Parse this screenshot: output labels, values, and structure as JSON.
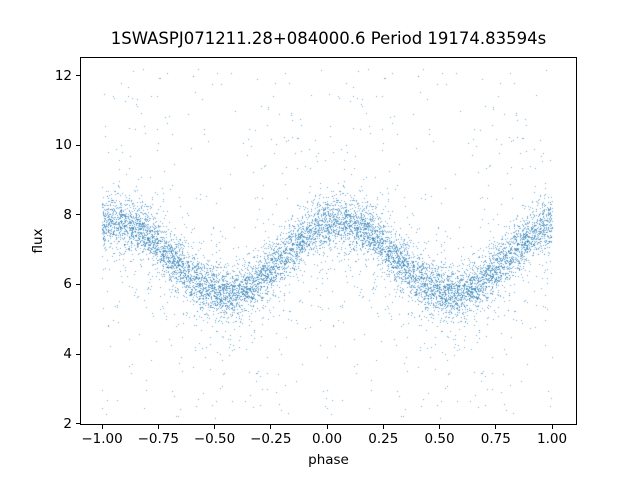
{
  "chart_data": {
    "type": "scatter",
    "title": "1SWASPJ071211.28+084000.6 Period 19174.83594s",
    "xlabel": "phase",
    "ylabel": "flux",
    "xlim": [
      -1.098,
      1.111
    ],
    "ylim": [
      1.96,
      12.54
    ],
    "grid": false,
    "legend": "none",
    "x_ticks": {
      "values": [
        -1.0,
        -0.75,
        -0.5,
        -0.25,
        0.0,
        0.25,
        0.5,
        0.75,
        1.0
      ],
      "labels": [
        "−1.00",
        "−0.75",
        "−0.50",
        "−0.25",
        "0.00",
        "0.25",
        "0.50",
        "0.75",
        "1.00"
      ]
    },
    "y_ticks": {
      "values": [
        2,
        4,
        6,
        8,
        10,
        12
      ],
      "labels": [
        "2",
        "4",
        "6",
        "8",
        "10",
        "12"
      ]
    },
    "curve": {
      "comment_visible_in_pixels": "mean flux of the dense point band vs phase; data is phase-folded and plotted twice (at phase and phase-1); maxima ~7.8 near phase 0.05 and -0.95; eclipse minima ~5.7 near phase -0.45 and 0.55",
      "phase": [
        -1.0,
        -0.95,
        -0.9,
        -0.85,
        -0.8,
        -0.75,
        -0.7,
        -0.65,
        -0.6,
        -0.55,
        -0.5,
        -0.45,
        -0.4,
        -0.35,
        -0.3,
        -0.25,
        -0.2,
        -0.15,
        -0.1,
        -0.05,
        0.0,
        0.05,
        0.1,
        0.15,
        0.2,
        0.25,
        0.3,
        0.35,
        0.4,
        0.45,
        0.5,
        0.55,
        0.6,
        0.65,
        0.7,
        0.75,
        0.8,
        0.85,
        0.9,
        0.95,
        1.0
      ],
      "flux": [
        7.77,
        7.83,
        7.79,
        7.65,
        7.42,
        7.14,
        6.81,
        6.49,
        6.19,
        5.95,
        5.79,
        5.73,
        5.77,
        5.91,
        6.14,
        6.42,
        6.75,
        7.07,
        7.37,
        7.61,
        7.77,
        7.83,
        7.79,
        7.65,
        7.42,
        7.14,
        6.81,
        6.49,
        6.19,
        5.95,
        5.79,
        5.73,
        5.77,
        5.91,
        6.14,
        6.42,
        6.75,
        7.07,
        7.37,
        7.61,
        7.77
      ]
    },
    "scatter_model": {
      "n_points": 4800,
      "plotted_twice_shift": 1.0,
      "core_frac": 0.8,
      "sigma_core": 0.36,
      "mid_frac": 0.13,
      "sigma_mid": 0.95,
      "outlier_frac": 0.07,
      "outlier_flux_range": [
        2.15,
        12.3
      ],
      "marker_color": "#1f77b4",
      "marker_alpha": 0.62,
      "marker_size_px": 1,
      "seed": 7
    }
  }
}
